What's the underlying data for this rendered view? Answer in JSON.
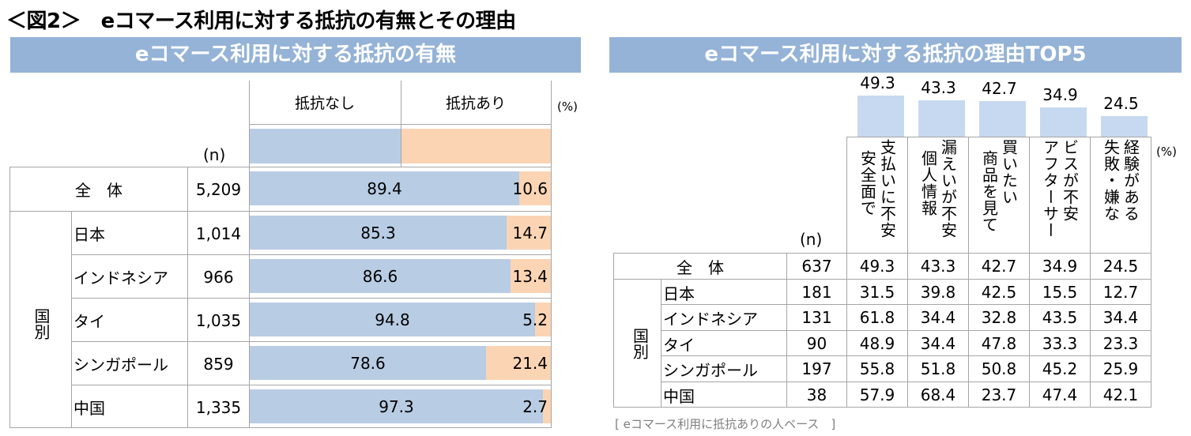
{
  "figure_title": "＜図2＞　eコマース利用に対する抵抗の有無とその理由",
  "colors": {
    "banner": "#95b3d7",
    "no_resistance": "#b8cce4",
    "resistance": "#fbd4b4",
    "reason_bar": "#c6d9f0",
    "grid": "#a6a6a6"
  },
  "left": {
    "banner": "eコマース利用に対する抵抗の有無",
    "n_label": "(n)",
    "unit": "(%)",
    "group_label": "国別",
    "legend": [
      "抵抗なし",
      "抵抗あり"
    ]
  },
  "right": {
    "banner": "eコマース利用に対する抵抗の理由TOP5",
    "n_label": "(n)",
    "unit": "(%)",
    "group_label": "国別",
    "footnote": "[ eコマース利用に抵抗ありの人ベース　]"
  },
  "chart_data": [
    {
      "type": "bar",
      "orientation": "horizontal-stacked-100",
      "title": "eコマース利用に対する抵抗の有無",
      "unit": "%",
      "categories": [
        "全　体",
        "日本",
        "インドネシア",
        "タイ",
        "シンガポール",
        "中国"
      ],
      "n": [
        "5,209",
        "1,014",
        "966",
        "1,035",
        "859",
        "1,335"
      ],
      "series": [
        {
          "name": "抵抗なし",
          "values": [
            89.4,
            85.3,
            86.6,
            94.8,
            78.6,
            97.3
          ]
        },
        {
          "name": "抵抗あり",
          "values": [
            10.6,
            14.7,
            13.4,
            5.2,
            21.4,
            2.7
          ]
        }
      ],
      "xlim": [
        0,
        100
      ]
    },
    {
      "type": "bar",
      "title": "eコマース利用に対する抵抗の理由TOP5",
      "unit": "%",
      "categories": [
        {
          "line1": "安全面で",
          "line2": "支払いに不安"
        },
        {
          "line1": "個人情報",
          "line2": "漏えいが不安"
        },
        {
          "line1": "商品を見て",
          "line2": "買いたい"
        },
        {
          "line1": "アフターサー",
          "line2": "ビスが不安"
        },
        {
          "line1": "失敗・嫌な",
          "line2": "経験がある"
        }
      ],
      "values": [
        49.3,
        43.3,
        42.7,
        34.9,
        24.5
      ],
      "ylim": [
        0,
        50
      ]
    },
    {
      "type": "table",
      "title": "eコマース利用に対する抵抗の理由TOP5（国別）",
      "rows": [
        {
          "label": "全　体",
          "n": "637",
          "values": [
            "49.3",
            "43.3",
            "42.7",
            "34.9",
            "24.5"
          ]
        },
        {
          "label": "日本",
          "n": "181",
          "values": [
            "31.5",
            "39.8",
            "42.5",
            "15.5",
            "12.7"
          ]
        },
        {
          "label": "インドネシア",
          "n": "131",
          "values": [
            "61.8",
            "34.4",
            "32.8",
            "43.5",
            "34.4"
          ]
        },
        {
          "label": "タイ",
          "n": "90",
          "values": [
            "48.9",
            "34.4",
            "47.8",
            "33.3",
            "23.3"
          ]
        },
        {
          "label": "シンガポール",
          "n": "197",
          "values": [
            "55.8",
            "51.8",
            "50.8",
            "45.2",
            "25.9"
          ]
        },
        {
          "label": "中国",
          "n": "38",
          "values": [
            "57.9",
            "68.4",
            "23.7",
            "47.4",
            "42.1"
          ]
        }
      ]
    }
  ]
}
